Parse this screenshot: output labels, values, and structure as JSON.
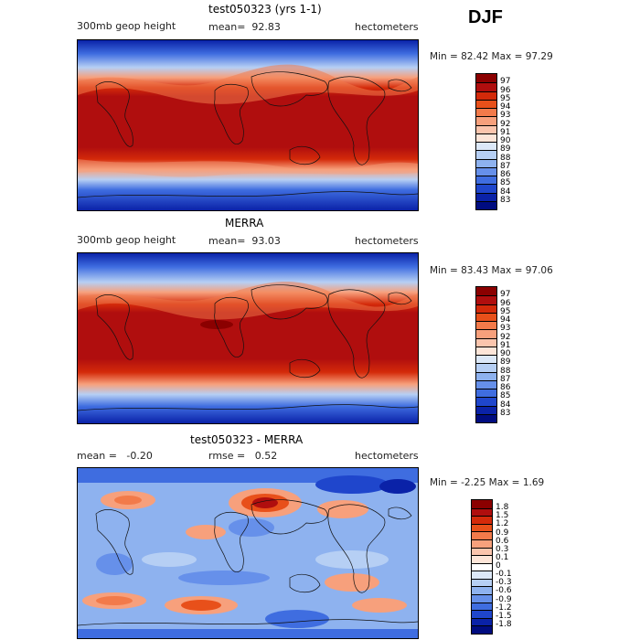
{
  "season": "DJF",
  "panels": [
    {
      "title": "test050323 (yrs 1-1)",
      "left_text": "300mb geop height",
      "mid_label": "mean=",
      "mid_value": "92.83",
      "right_text": "hectometers",
      "min_label": "Min =",
      "min_value": "82.42",
      "max_label": "Max =",
      "max_value": "97.29",
      "colorbar": {
        "labels": [
          "97",
          "96",
          "95",
          "94",
          "93",
          "92",
          "91",
          "90",
          "89",
          "88",
          "87",
          "86",
          "85",
          "84",
          "83"
        ],
        "colors": [
          "#8b0000",
          "#b00e0e",
          "#d42a0a",
          "#e8501a",
          "#f27a4a",
          "#f7a07c",
          "#fbc5ad",
          "#fde5d8",
          "#dce8f8",
          "#b6cff4",
          "#8eb2ef",
          "#6690ea",
          "#3f6de0",
          "#1f46cc",
          "#0a22a8",
          "#000c80"
        ]
      }
    },
    {
      "title": "MERRA",
      "left_text": "300mb geop height",
      "mid_label": "mean=",
      "mid_value": "93.03",
      "right_text": "hectometers",
      "min_label": "Min =",
      "min_value": "83.43",
      "max_label": "Max =",
      "max_value": "97.06",
      "colorbar": {
        "labels": [
          "97",
          "96",
          "95",
          "94",
          "93",
          "92",
          "91",
          "90",
          "89",
          "88",
          "87",
          "86",
          "85",
          "84",
          "83"
        ],
        "colors": [
          "#8b0000",
          "#b00e0e",
          "#d42a0a",
          "#e8501a",
          "#f27a4a",
          "#f7a07c",
          "#fbc5ad",
          "#fde5d8",
          "#dce8f8",
          "#b6cff4",
          "#8eb2ef",
          "#6690ea",
          "#3f6de0",
          "#1f46cc",
          "#0a22a8",
          "#000c80"
        ]
      }
    },
    {
      "title": "test050323 - MERRA",
      "left_text": "mean =   -0.20",
      "mid_label": "rmse =",
      "mid_value": "0.52",
      "right_text": "hectometers",
      "min_label": "Min =",
      "min_value": "-2.25",
      "max_label": "Max =",
      "max_value": "1.69",
      "colorbar": {
        "labels": [
          "1.8",
          "1.5",
          "1.2",
          "0.9",
          "0.6",
          "0.3",
          "0.1",
          "0",
          "-0.1",
          "-0.3",
          "-0.6",
          "-0.9",
          "-1.2",
          "-1.5",
          "-1.8"
        ],
        "colors": [
          "#8b0000",
          "#b00e0e",
          "#d42a0a",
          "#e8501a",
          "#f27a4a",
          "#f7a07c",
          "#fbc5ad",
          "#fde5d8",
          "#ffffff",
          "#dce8f8",
          "#b6cff4",
          "#8eb2ef",
          "#6690ea",
          "#3f6de0",
          "#1f46cc",
          "#0a22a8",
          "#000c80"
        ]
      }
    }
  ],
  "chart_data": [
    {
      "type": "heatmap",
      "title": "test050323 (yrs 1-1)",
      "subtitle": "300mb geop height",
      "units": "hectometers",
      "mean": 92.83,
      "min": 82.42,
      "max": 97.29,
      "levels": [
        83,
        84,
        85,
        86,
        87,
        88,
        89,
        90,
        91,
        92,
        93,
        94,
        95,
        96,
        97
      ],
      "description_fields": "zonal bands: high values in tropics, low at poles"
    },
    {
      "type": "heatmap",
      "title": "MERRA",
      "subtitle": "300mb geop height",
      "units": "hectometers",
      "mean": 93.03,
      "min": 83.43,
      "max": 97.06,
      "levels": [
        83,
        84,
        85,
        86,
        87,
        88,
        89,
        90,
        91,
        92,
        93,
        94,
        95,
        96,
        97
      ]
    },
    {
      "type": "heatmap",
      "title": "test050323 - MERRA",
      "units": "hectometers",
      "mean": -0.2,
      "rmse": 0.52,
      "min": -2.25,
      "max": 1.69,
      "levels": [
        -1.8,
        -1.5,
        -1.2,
        -0.9,
        -0.6,
        -0.3,
        -0.1,
        0,
        0.1,
        0.3,
        0.6,
        0.9,
        1.2,
        1.5,
        1.8
      ]
    }
  ]
}
